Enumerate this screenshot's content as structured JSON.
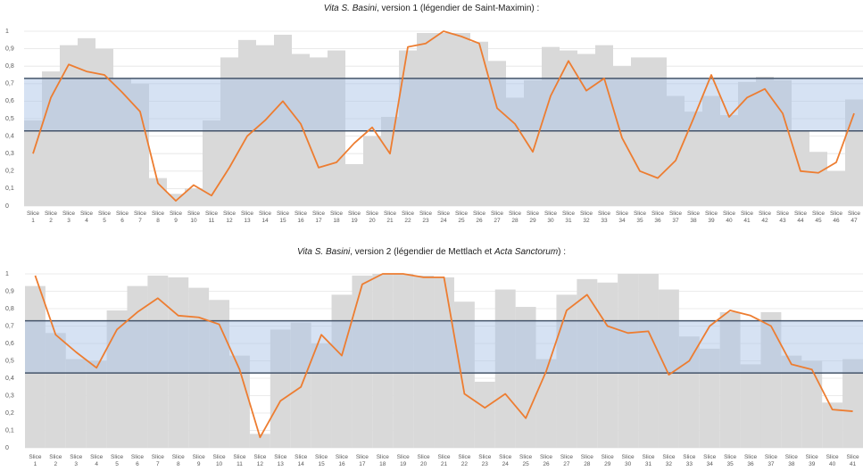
{
  "chart_data": [
    {
      "type": "combo",
      "title": [
        "Vita S. Basini",
        ", version 1 (légendier de Saint-Maximin) :"
      ],
      "categories": [
        "Slice 1",
        "Slice 2",
        "Slice 3",
        "Slice 4",
        "Slice 5",
        "Slice 6",
        "Slice 7",
        "Slice 8",
        "Slice 9",
        "Slice 10",
        "Slice 11",
        "Slice 12",
        "Slice 13",
        "Slice 14",
        "Slice 15",
        "Slice 16",
        "Slice 17",
        "Slice 18",
        "Slice 19",
        "Slice 20",
        "Slice 21",
        "Slice 22",
        "Slice 23",
        "Slice 24",
        "Slice 25",
        "Slice 26",
        "Slice 27",
        "Slice 28",
        "Slice 29",
        "Slice 30",
        "Slice 31",
        "Slice 32",
        "Slice 33",
        "Slice 34",
        "Slice 35",
        "Slice 36",
        "Slice 37",
        "Slice 38",
        "Slice 39",
        "Slice 40",
        "Slice 41",
        "Slice 42",
        "Slice 43",
        "Slice 44",
        "Slice 45",
        "Slice 46",
        "Slice 47"
      ],
      "series": [
        {
          "type": "bar",
          "color": "#d9d9d9",
          "values": [
            0.49,
            0.77,
            0.92,
            0.96,
            0.9,
            0.73,
            0.7,
            0.16,
            0.07,
            0.1,
            0.49,
            0.85,
            0.95,
            0.92,
            0.98,
            0.87,
            0.85,
            0.89,
            0.24,
            0.4,
            0.51,
            0.89,
            0.99,
            0.99,
            0.99,
            0.94,
            0.83,
            0.62,
            0.72,
            0.91,
            0.89,
            0.87,
            0.92,
            0.8,
            0.85,
            0.85,
            0.63,
            0.54,
            0.63,
            0.52,
            0.71,
            0.74,
            0.72,
            0.43,
            0.31,
            0.2,
            0.61
          ]
        },
        {
          "type": "line",
          "color": "#ed7d31",
          "values": [
            0.3,
            0.62,
            0.81,
            0.77,
            0.75,
            0.65,
            0.54,
            0.13,
            0.03,
            0.12,
            0.06,
            0.22,
            0.4,
            0.49,
            0.6,
            0.47,
            0.22,
            0.25,
            0.36,
            0.45,
            0.3,
            0.91,
            0.93,
            1.0,
            0.97,
            0.93,
            0.56,
            0.47,
            0.31,
            0.63,
            0.83,
            0.66,
            0.73,
            0.39,
            0.2,
            0.16,
            0.26,
            0.5,
            0.75,
            0.51,
            0.62,
            0.67,
            0.53,
            0.2,
            0.19,
            0.25,
            0.53
          ]
        }
      ],
      "band": [
        0.43,
        0.73
      ],
      "band_color": "#aec5e8",
      "band_line_color": "#44546a",
      "ylim": [
        0,
        1
      ],
      "yticks": [
        {
          "value": 0,
          "label": "0"
        },
        {
          "value": 0.1,
          "label": "0,1"
        },
        {
          "value": 0.2,
          "label": "0,2"
        },
        {
          "value": 0.3,
          "label": "0,3"
        },
        {
          "value": 0.4,
          "label": "0,4"
        },
        {
          "value": 0.5,
          "label": "0,5"
        },
        {
          "value": 0.6,
          "label": "0,6"
        },
        {
          "value": 0.7,
          "label": "0,7"
        },
        {
          "value": 0.8,
          "label": "0,8"
        },
        {
          "value": 0.9,
          "label": "0,9"
        },
        {
          "value": 1,
          "label": "1"
        }
      ],
      "grid": true
    },
    {
      "type": "combo",
      "title": [
        "Vita S. Basini",
        ", version 2 (légendier de Mettlach et ",
        "Acta Sanctorum",
        ") :"
      ],
      "categories": [
        "Slice 1",
        "Slice 2",
        "Slice 3",
        "Slice 4",
        "Slice 5",
        "Slice 6",
        "Slice 7",
        "Slice 8",
        "Slice 9",
        "Slice 10",
        "Slice 11",
        "Slice 12",
        "Slice 13",
        "Slice 14",
        "Slice 15",
        "Slice 16",
        "Slice 17",
        "Slice 18",
        "Slice 19",
        "Slice 20",
        "Slice 21",
        "Slice 22",
        "Slice 23",
        "Slice 24",
        "Slice 25",
        "Slice 26",
        "Slice 27",
        "Slice 28",
        "Slice 29",
        "Slice 30",
        "Slice 31",
        "Slice 32",
        "Slice 33",
        "Slice 34",
        "Slice 35",
        "Slice 36",
        "Slice 37",
        "Slice 38",
        "Slice 39",
        "Slice 40",
        "Slice 41"
      ],
      "series": [
        {
          "type": "bar",
          "color": "#d9d9d9",
          "values": [
            0.93,
            0.66,
            0.51,
            0.5,
            0.79,
            0.93,
            0.99,
            0.98,
            0.92,
            0.85,
            0.53,
            0.08,
            0.68,
            0.72,
            0.6,
            0.88,
            0.99,
            1.0,
            1.0,
            0.99,
            0.98,
            0.84,
            0.38,
            0.91,
            0.81,
            0.51,
            0.88,
            0.97,
            0.95,
            1.0,
            1.0,
            0.91,
            0.64,
            0.57,
            0.78,
            0.48,
            0.78,
            0.53,
            0.5,
            0.26,
            0.51
          ]
        },
        {
          "type": "line",
          "color": "#ed7d31",
          "values": [
            0.99,
            0.65,
            0.55,
            0.46,
            0.68,
            0.78,
            0.86,
            0.76,
            0.75,
            0.71,
            0.45,
            0.06,
            0.27,
            0.35,
            0.65,
            0.53,
            0.94,
            1.0,
            1.0,
            0.98,
            0.98,
            0.31,
            0.23,
            0.31,
            0.17,
            0.44,
            0.79,
            0.88,
            0.7,
            0.66,
            0.67,
            0.42,
            0.5,
            0.7,
            0.79,
            0.76,
            0.7,
            0.48,
            0.45,
            0.22,
            0.21
          ]
        }
      ],
      "band": [
        0.43,
        0.73
      ],
      "band_color": "#aec5e8",
      "band_line_color": "#44546a",
      "ylim": [
        0,
        1
      ],
      "yticks": [
        {
          "value": 0,
          "label": "0"
        },
        {
          "value": 0.1,
          "label": "0,1"
        },
        {
          "value": 0.2,
          "label": "0,2"
        },
        {
          "value": 0.3,
          "label": "0,3"
        },
        {
          "value": 0.4,
          "label": "0,4"
        },
        {
          "value": 0.5,
          "label": "0,5"
        },
        {
          "value": 0.6,
          "label": "0,6"
        },
        {
          "value": 0.7,
          "label": "0,7"
        },
        {
          "value": 0.8,
          "label": "0,8"
        },
        {
          "value": 0.9,
          "label": "0,9"
        },
        {
          "value": 1,
          "label": "1"
        }
      ],
      "grid": true
    }
  ]
}
